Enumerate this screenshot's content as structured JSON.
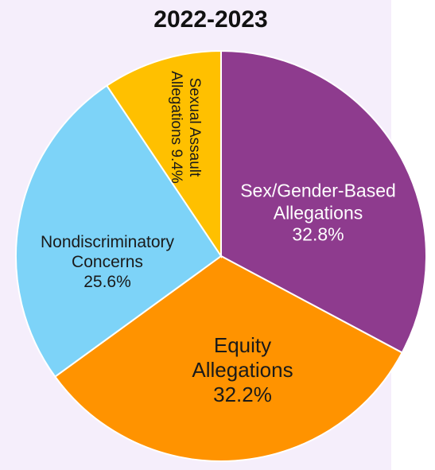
{
  "chart_data": {
    "type": "pie",
    "title": "2022-2023",
    "categories": [
      "Sex/Gender-Based Allegations",
      "Equity Allegations",
      "Nondiscriminatory Concerns",
      "Sexual Assault Allegations"
    ],
    "values": [
      32.8,
      32.2,
      25.6,
      9.4
    ],
    "value_labels": [
      "32.8%",
      "32.2%",
      "25.6%",
      "9.4%"
    ],
    "colors": [
      "#8e3b8e",
      "#ff9300",
      "#7dd3f8",
      "#ffc000"
    ]
  }
}
